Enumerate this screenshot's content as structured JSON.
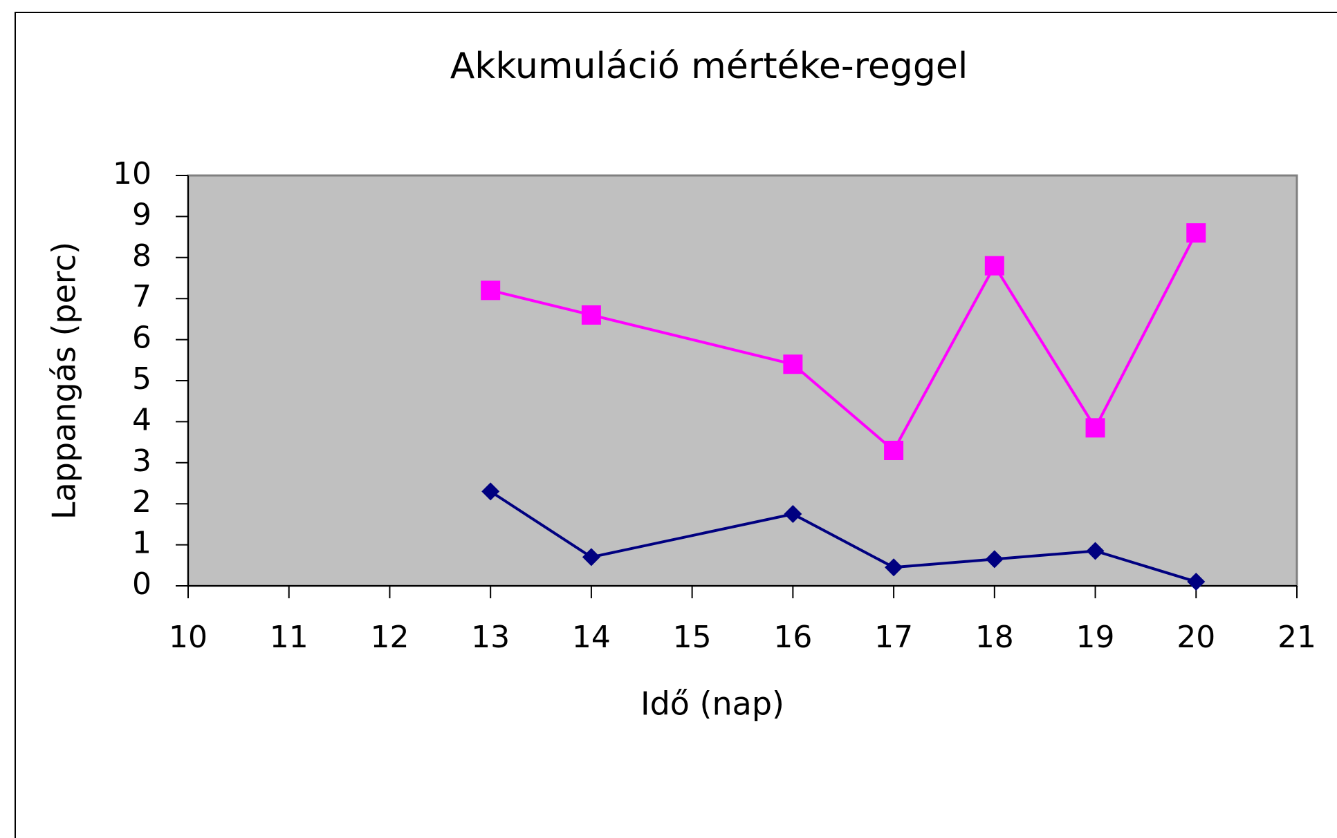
{
  "chart_data": {
    "type": "line",
    "title": "Akkumuláció mértéke-reggel",
    "x_label": "Idő (nap)",
    "y_label": "Lappangás (perc)",
    "x": [
      13,
      14,
      16,
      17,
      18,
      19,
      20
    ],
    "series": [
      {
        "color": "#ff00ff",
        "marker": "square",
        "values": [
          7.2,
          6.6,
          5.4,
          3.3,
          7.8,
          3.85,
          8.6
        ]
      },
      {
        "color": "#000080",
        "marker": "diamond",
        "values": [
          2.3,
          0.7,
          1.75,
          0.45,
          0.65,
          0.85,
          0.1
        ]
      }
    ],
    "xlim": [
      10,
      21
    ],
    "xticks": [
      10,
      11,
      12,
      13,
      14,
      15,
      16,
      17,
      18,
      19,
      20,
      21
    ],
    "ylim": [
      0,
      10
    ],
    "yticks": [
      0,
      1,
      2,
      3,
      4,
      5,
      6,
      7,
      8,
      9,
      10
    ],
    "grid": false,
    "plot_background": "#c0c0c0"
  }
}
